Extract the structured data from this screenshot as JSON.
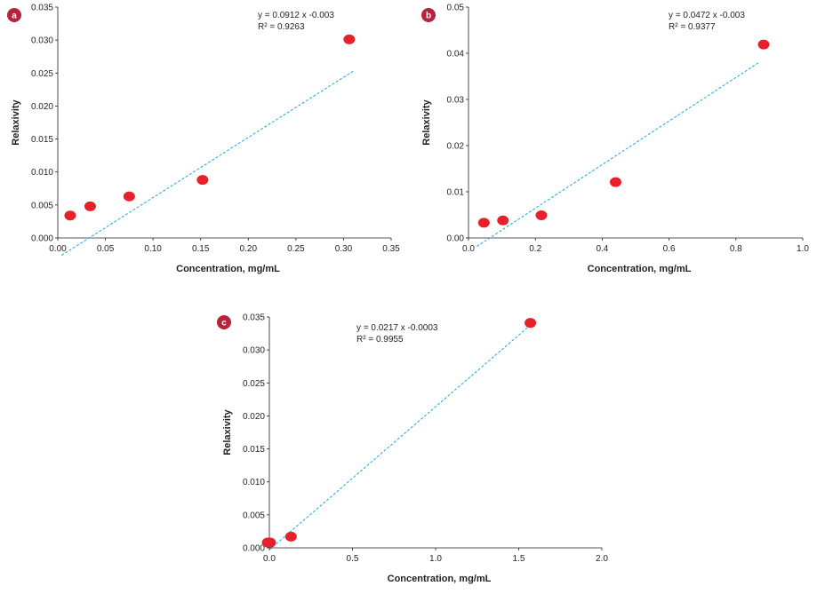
{
  "colors": {
    "point": "#e8202a",
    "trend": "#1aa7e0",
    "axis": "#231f20",
    "badge": "#b5243a"
  },
  "chart_data": [
    {
      "panel": "a",
      "type": "scatter",
      "xlabel": "Concentration, mg/mL",
      "ylabel": "Relaxivity",
      "xlim": [
        0,
        0.35
      ],
      "ylim": [
        0,
        0.035
      ],
      "xticks": [
        "0.00",
        "0.05",
        "0.10",
        "0.15",
        "0.20",
        "0.25",
        "0.30",
        "0.35"
      ],
      "yticks": [
        "0.000",
        "0.005",
        "0.010",
        "0.015",
        "0.020",
        "0.025",
        "0.030",
        "0.035"
      ],
      "points": [
        {
          "x": 0.013,
          "y": 0.0034
        },
        {
          "x": 0.034,
          "y": 0.0048
        },
        {
          "x": 0.075,
          "y": 0.0063
        },
        {
          "x": 0.152,
          "y": 0.0088
        },
        {
          "x": 0.306,
          "y": 0.0301
        }
      ],
      "trendline": {
        "slope": 0.0912,
        "intercept": -0.003,
        "x_start": 0.004,
        "x_end": 0.31
      },
      "equation": "y = 0.0912 x -0.003",
      "r2": "R² = 0.9263"
    },
    {
      "panel": "b",
      "type": "scatter",
      "xlabel": "Concentration, mg/mL",
      "ylabel": "Relaxivity",
      "xlim": [
        0,
        1.0
      ],
      "ylim": [
        0,
        0.05
      ],
      "xticks": [
        "0.0",
        "0.2",
        "0.4",
        "0.6",
        "0.8",
        "1.0"
      ],
      "yticks": [
        "0.00",
        "0.01",
        "0.02",
        "0.03",
        "0.04",
        "0.05"
      ],
      "points": [
        {
          "x": 0.046,
          "y": 0.0033
        },
        {
          "x": 0.103,
          "y": 0.0038
        },
        {
          "x": 0.218,
          "y": 0.0049
        },
        {
          "x": 0.44,
          "y": 0.0121
        },
        {
          "x": 0.883,
          "y": 0.0419
        }
      ],
      "trendline": {
        "slope": 0.0472,
        "intercept": -0.003,
        "x_start": 0.025,
        "x_end": 0.87
      },
      "equation": "y = 0.0472 x -0.003",
      "r2": "R² = 0.9377"
    },
    {
      "panel": "c",
      "type": "scatter",
      "xlabel": "Concentration, mg/mL",
      "ylabel": "Relaxivity",
      "xlim": [
        0,
        2.0
      ],
      "ylim": [
        0,
        0.035
      ],
      "xticks": [
        "0.0",
        "0.5",
        "1.0",
        "1.5",
        "2.0"
      ],
      "yticks": [
        "0.000",
        "0.005",
        "0.010",
        "0.015",
        "0.020",
        "0.025",
        "0.030",
        "0.035"
      ],
      "points": [
        {
          "x": -0.01,
          "y": 0.0008
        },
        {
          "x": 0.005,
          "y": 0.0008
        },
        {
          "x": 0.13,
          "y": 0.0017
        },
        {
          "x": 1.57,
          "y": 0.0341
        }
      ],
      "trendline": {
        "slope": 0.0217,
        "intercept": -0.0003,
        "x_start": 0.0,
        "x_end": 1.57
      },
      "equation": "y = 0.0217 x -0.0003",
      "r2": "R² = 0.9955"
    }
  ]
}
